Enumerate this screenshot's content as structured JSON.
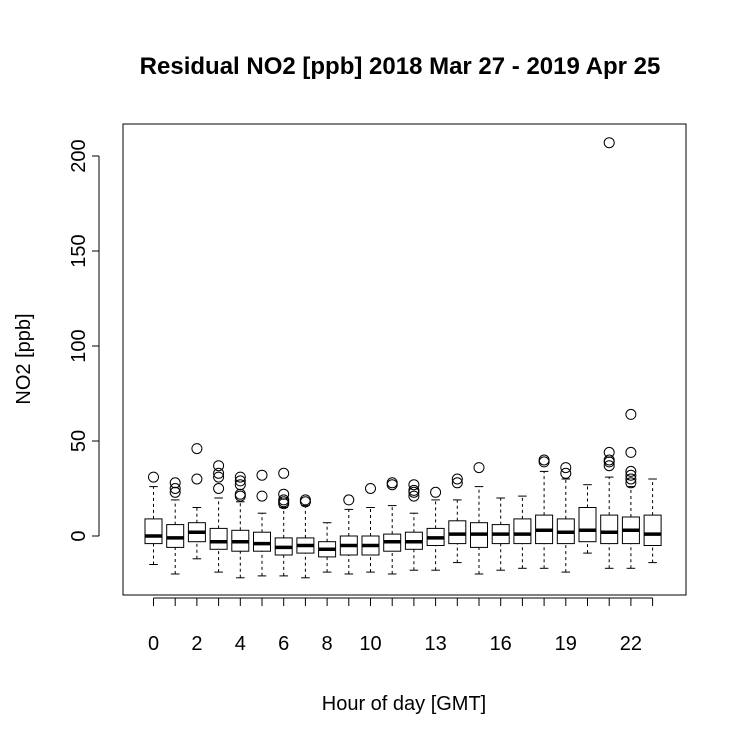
{
  "chart_data": {
    "type": "boxplot",
    "title": "Residual NO2 [ppb] 2018 Mar 27 - 2019 Apr 25",
    "xlabel": "Hour of day [GMT]",
    "ylabel": "NO2 [ppb]",
    "ylim": [
      -31,
      216
    ],
    "y_ticks": [
      "0",
      "50",
      "100",
      "150",
      "200"
    ],
    "x_tick_labels": [
      "0",
      "2",
      "4",
      "6",
      "8",
      "10",
      "13",
      "16",
      "19",
      "22"
    ],
    "grid": false,
    "legend": "none",
    "categories": [
      "0",
      "1",
      "2",
      "3",
      "4",
      "5",
      "6",
      "7",
      "8",
      "9",
      "10",
      "11",
      "12",
      "13",
      "14",
      "15",
      "16",
      "17",
      "18",
      "19",
      "20",
      "21",
      "22",
      "23"
    ],
    "boxes": [
      {
        "hour": "0",
        "whisker_low": -15,
        "q1": -4,
        "median": 0,
        "q3": 9,
        "whisker_high": 26,
        "outliers": [
          31
        ]
      },
      {
        "hour": "1",
        "whisker_low": -20,
        "q1": -6,
        "median": -1,
        "q3": 6,
        "whisker_high": 19,
        "outliers": [
          23,
          25,
          28
        ]
      },
      {
        "hour": "2",
        "whisker_low": -12,
        "q1": -3,
        "median": 2,
        "q3": 7,
        "whisker_high": 15,
        "outliers": [
          30,
          46
        ]
      },
      {
        "hour": "3",
        "whisker_low": -19,
        "q1": -7,
        "median": -3,
        "q3": 4,
        "whisker_high": 20,
        "outliers": [
          25,
          31,
          33,
          37
        ]
      },
      {
        "hour": "4",
        "whisker_low": -22,
        "q1": -8,
        "median": -3,
        "q3": 3,
        "whisker_high": 18,
        "outliers": [
          21,
          22,
          27,
          29,
          31
        ]
      },
      {
        "hour": "5",
        "whisker_low": -21,
        "q1": -8,
        "median": -4,
        "q3": 2,
        "whisker_high": 12,
        "outliers": [
          21,
          32
        ]
      },
      {
        "hour": "6",
        "whisker_low": -21,
        "q1": -10,
        "median": -6,
        "q3": -1,
        "whisker_high": 15,
        "outliers": [
          17,
          18,
          19,
          22,
          33
        ]
      },
      {
        "hour": "7",
        "whisker_low": -22,
        "q1": -9,
        "median": -5,
        "q3": -1,
        "whisker_high": 16,
        "outliers": [
          18,
          19
        ]
      },
      {
        "hour": "8",
        "whisker_low": -19,
        "q1": -11,
        "median": -7,
        "q3": -3,
        "whisker_high": 7,
        "outliers": []
      },
      {
        "hour": "9",
        "whisker_low": -20,
        "q1": -10,
        "median": -5,
        "q3": 0,
        "whisker_high": 14,
        "outliers": [
          19
        ]
      },
      {
        "hour": "10",
        "whisker_low": -19,
        "q1": -10,
        "median": -5,
        "q3": 0,
        "whisker_high": 15,
        "outliers": [
          25
        ]
      },
      {
        "hour": "11",
        "whisker_low": -20,
        "q1": -8,
        "median": -3,
        "q3": 1,
        "whisker_high": 16,
        "outliers": [
          27,
          28
        ]
      },
      {
        "hour": "12",
        "whisker_low": -18,
        "q1": -7,
        "median": -3,
        "q3": 2,
        "whisker_high": 12,
        "outliers": [
          21,
          23,
          24,
          27
        ]
      },
      {
        "hour": "13",
        "whisker_low": -18,
        "q1": -5,
        "median": -1,
        "q3": 4,
        "whisker_high": 19,
        "outliers": [
          23
        ]
      },
      {
        "hour": "14",
        "whisker_low": -14,
        "q1": -4,
        "median": 1,
        "q3": 8,
        "whisker_high": 19,
        "outliers": [
          28,
          30
        ]
      },
      {
        "hour": "15",
        "whisker_low": -20,
        "q1": -6,
        "median": 1,
        "q3": 7,
        "whisker_high": 26,
        "outliers": [
          36
        ]
      },
      {
        "hour": "16",
        "whisker_low": -18,
        "q1": -4,
        "median": 1,
        "q3": 6,
        "whisker_high": 20,
        "outliers": []
      },
      {
        "hour": "17",
        "whisker_low": -17,
        "q1": -4,
        "median": 1,
        "q3": 9,
        "whisker_high": 21,
        "outliers": []
      },
      {
        "hour": "18",
        "whisker_low": -17,
        "q1": -4,
        "median": 3,
        "q3": 11,
        "whisker_high": 34,
        "outliers": [
          39,
          40
        ]
      },
      {
        "hour": "19",
        "whisker_low": -19,
        "q1": -4,
        "median": 2,
        "q3": 9,
        "whisker_high": 30,
        "outliers": [
          33,
          36
        ]
      },
      {
        "hour": "20",
        "whisker_low": -9,
        "q1": -3,
        "median": 3,
        "q3": 15,
        "whisker_high": 27,
        "outliers": []
      },
      {
        "hour": "21",
        "whisker_low": -17,
        "q1": -4,
        "median": 2,
        "q3": 11,
        "whisker_high": 31,
        "outliers": [
          37,
          39,
          40,
          44,
          207
        ]
      },
      {
        "hour": "22",
        "whisker_low": -17,
        "q1": -4,
        "median": 3,
        "q3": 10,
        "whisker_high": 26,
        "outliers": [
          28,
          30,
          32,
          34,
          44,
          64
        ]
      },
      {
        "hour": "23",
        "whisker_low": -14,
        "q1": -5,
        "median": 1,
        "q3": 11,
        "whisker_high": 30,
        "outliers": []
      }
    ]
  }
}
